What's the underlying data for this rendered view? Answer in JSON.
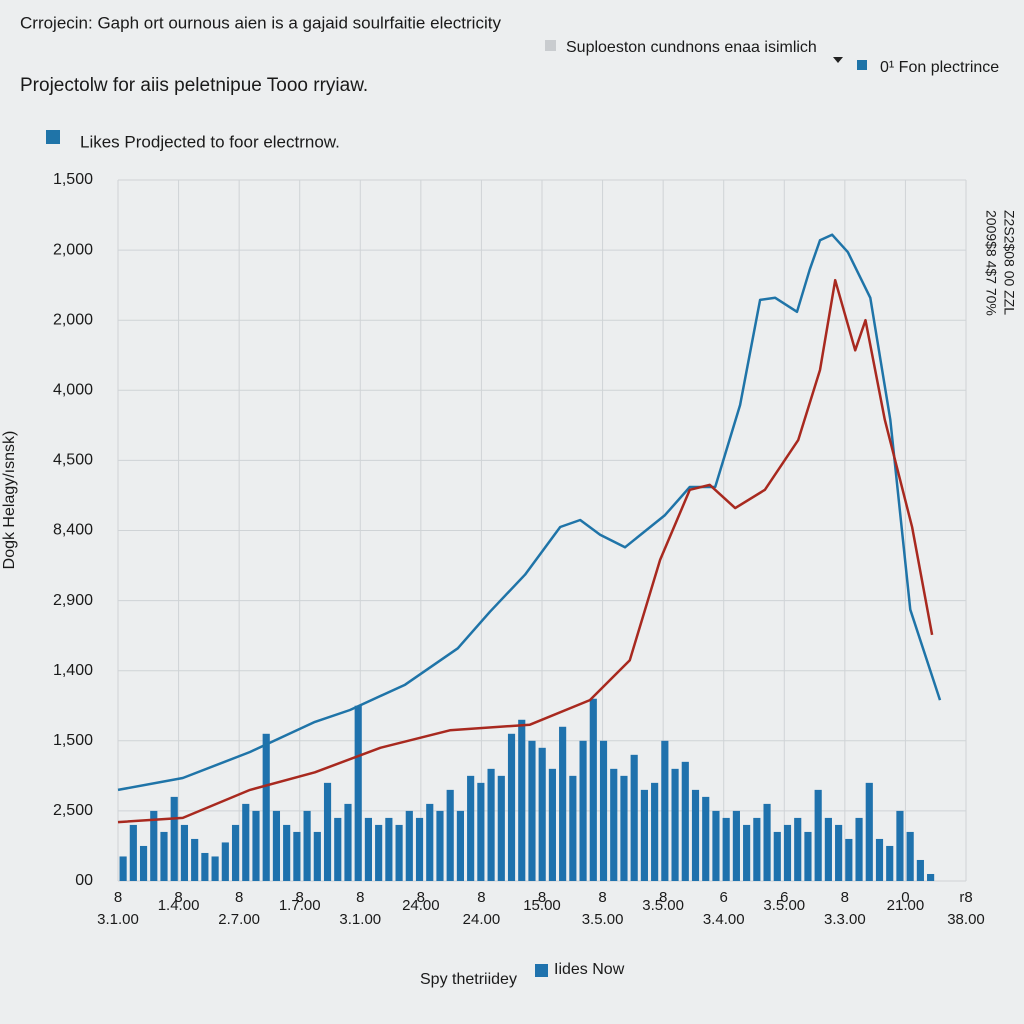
{
  "chart_data": {
    "type": "line",
    "title": "Crrojecin: Gaph ort ournous aien is a gajaid soulrfaitie electricity",
    "legend_notes": [
      "Suploeston cundnons enaa isimlich",
      "0¹ Fon plectrince"
    ],
    "subtitle": "Projectolw for aiis peletnipue Tooo rryiaw.",
    "y_label": "Dogk Helagy/ısnsk)",
    "x_label": "Spy thetriidey",
    "side_text": [
      "2009$8 4$7 70%",
      "Z2S2$08 00 ZZL"
    ],
    "grid": true,
    "ylim": [
      0,
      10
    ],
    "yticks": [
      {
        "value": 0,
        "label": "00"
      },
      {
        "value": 1,
        "label": "2,500"
      },
      {
        "value": 2,
        "label": "1,500"
      },
      {
        "value": 3,
        "label": "1,400"
      },
      {
        "value": 4,
        "label": "2,900"
      },
      {
        "value": 5,
        "label": "8,400"
      },
      {
        "value": 6,
        "label": "4,500"
      },
      {
        "value": 7,
        "label": "4,000"
      },
      {
        "value": 8,
        "label": "2,000"
      },
      {
        "value": 9,
        "label": "2,000"
      },
      {
        "value": 10,
        "label": "1,500"
      }
    ],
    "xlim": [
      0,
      14
    ],
    "xticks": [
      {
        "value": 0,
        "label": "3.1.00"
      },
      {
        "value": 1,
        "label": "1.4.00"
      },
      {
        "value": 2,
        "label": "2.7.00"
      },
      {
        "value": 3,
        "label": "1.7.00"
      },
      {
        "value": 4,
        "label": "3.1.00"
      },
      {
        "value": 5,
        "label": "24.00"
      },
      {
        "value": 6,
        "label": "24.00"
      },
      {
        "value": 7,
        "label": "15.00"
      },
      {
        "value": 8,
        "label": "3.5.00"
      },
      {
        "value": 9,
        "label": "3.5.00"
      },
      {
        "value": 10,
        "label": "3.4.00"
      },
      {
        "value": 11,
        "label": "3.5.00"
      },
      {
        "value": 12,
        "label": "3.3.00"
      },
      {
        "value": 13,
        "label": "21.00"
      },
      {
        "value": 14,
        "label": "38.00"
      }
    ],
    "x_top_labels": [
      "8",
      "8",
      "8",
      "8",
      "8",
      "8",
      "8",
      "8",
      "8",
      "8",
      "6",
      "6",
      "8",
      "0",
      "r8"
    ],
    "series": [
      {
        "name": "Likes Prodjected to foor electrnow.",
        "color": "#1f74a8",
        "x": [
          0,
          1.07,
          2.18,
          3.25,
          3.83,
          4.74,
          5.61,
          6.14,
          6.72,
          7.3,
          7.63,
          7.96,
          8.37,
          9.03,
          9.44,
          9.86,
          10.27,
          10.6,
          10.85,
          11.21,
          11.42,
          11.59,
          11.79,
          12.05,
          12.42,
          12.75,
          13.08,
          13.57
        ],
        "values": [
          1.3,
          1.47,
          1.84,
          2.27,
          2.44,
          2.8,
          3.32,
          3.84,
          4.37,
          5.05,
          5.15,
          4.94,
          4.76,
          5.22,
          5.62,
          5.62,
          6.79,
          8.29,
          8.32,
          8.12,
          8.72,
          9.14,
          9.22,
          8.97,
          8.32,
          6.58,
          3.87,
          2.58
        ]
      },
      {
        "color": "#a8291f",
        "x": [
          0,
          1.07,
          2.18,
          3.25,
          4.33,
          5.48,
          6.8,
          7.79,
          8.45,
          8.95,
          9.44,
          9.77,
          10.19,
          10.68,
          11.23,
          11.59,
          11.84,
          12.17,
          12.34,
          12.66,
          13.11,
          13.44
        ],
        "values": [
          0.84,
          0.9,
          1.3,
          1.55,
          1.9,
          2.15,
          2.23,
          2.58,
          3.15,
          4.58,
          5.58,
          5.65,
          5.32,
          5.58,
          6.29,
          7.29,
          8.57,
          7.57,
          8.0,
          6.58,
          5.05,
          3.51
        ]
      },
      {
        "name": "Iides Now",
        "color": "#1f72ad",
        "type": "bar",
        "values": [
          0.35,
          0.8,
          0.5,
          1.0,
          0.7,
          1.2,
          0.8,
          0.6,
          0.4,
          0.35,
          0.55,
          0.8,
          1.1,
          1.0,
          2.1,
          1.0,
          0.8,
          0.7,
          1.0,
          0.7,
          1.4,
          0.9,
          1.1,
          2.5,
          0.9,
          0.8,
          0.9,
          0.8,
          1.0,
          0.9,
          1.1,
          1.0,
          1.3,
          1.0,
          1.5,
          1.4,
          1.6,
          1.5,
          2.1,
          2.3,
          2.0,
          1.9,
          1.6,
          2.2,
          1.5,
          2.0,
          2.6,
          2.0,
          1.6,
          1.5,
          1.8,
          1.3,
          1.4,
          2.0,
          1.6,
          1.7,
          1.3,
          1.2,
          1.0,
          0.9,
          1.0,
          0.8,
          0.9,
          1.1,
          0.7,
          0.8,
          0.9,
          0.7,
          1.3,
          0.9,
          0.8,
          0.6,
          0.9,
          1.4,
          0.6,
          0.5,
          1.0,
          0.7,
          0.3,
          0.1
        ]
      }
    ]
  }
}
